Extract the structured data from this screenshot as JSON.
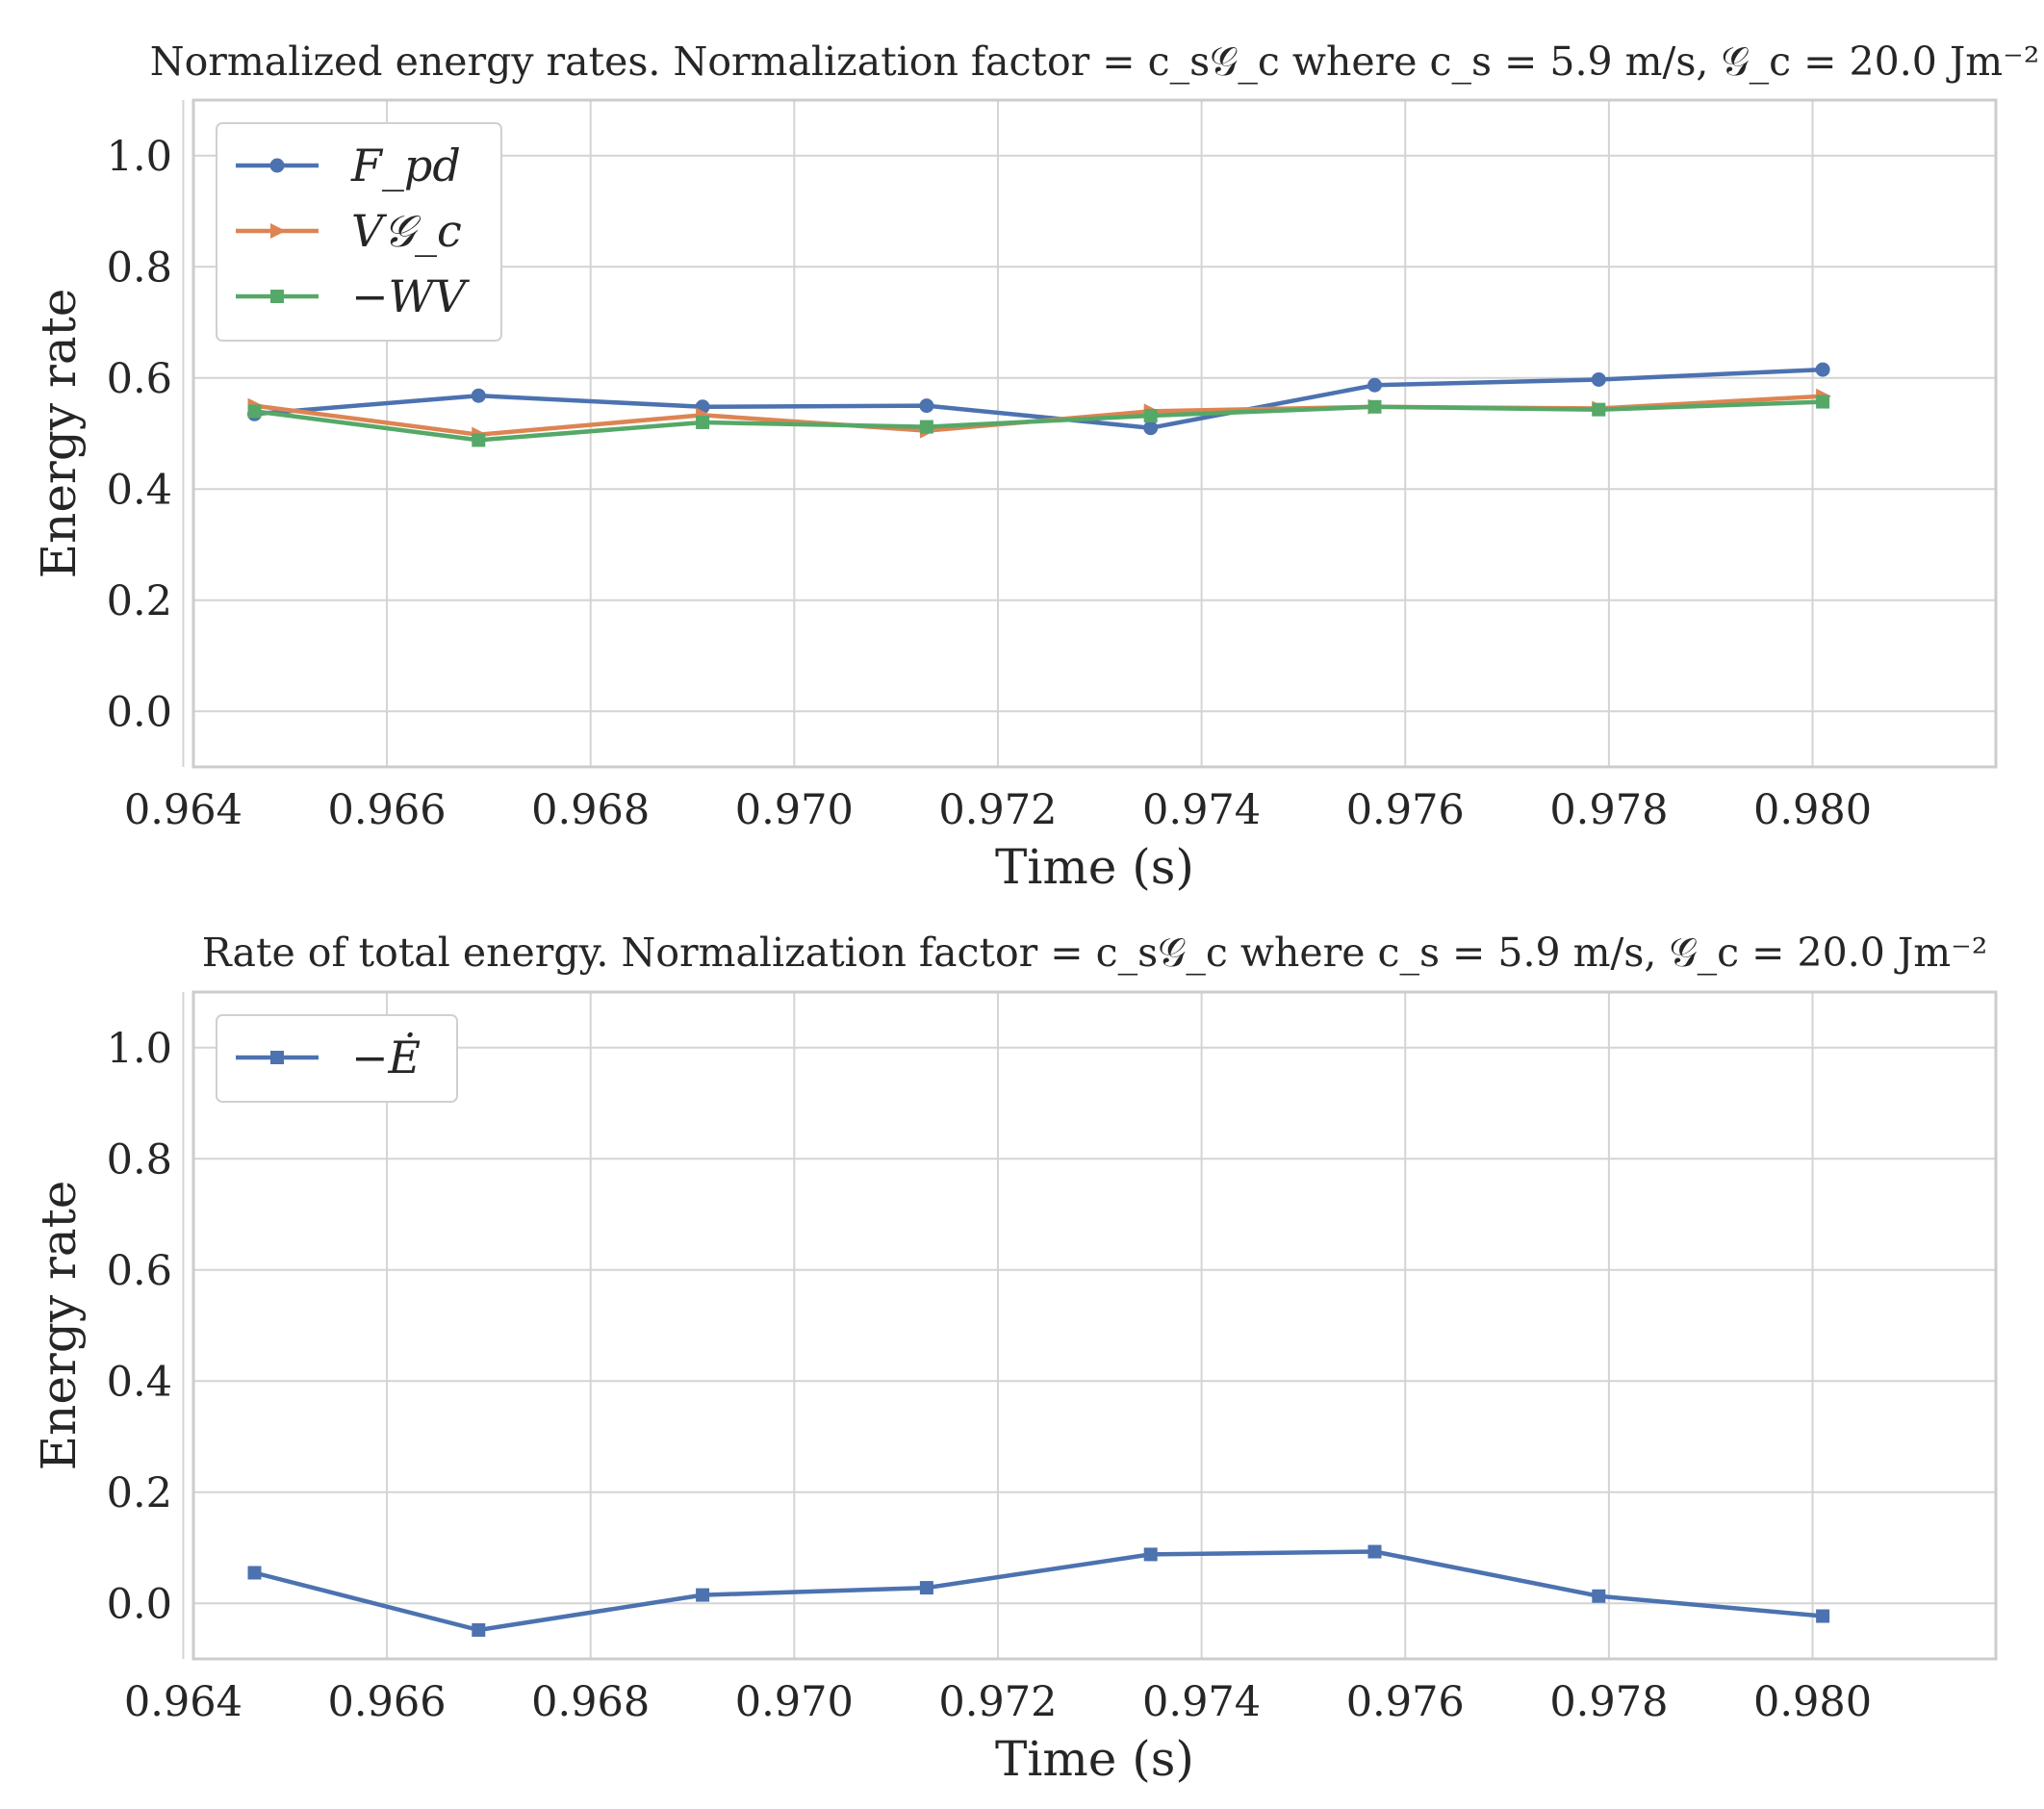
{
  "chart_data": [
    {
      "type": "line",
      "title": "Normalized energy rates. Normalization factor = c_s𝒢_c where c_s = 5.9 m/s, 𝒢_c = 20.0 Jm⁻²",
      "xlabel": "Time (s)",
      "ylabel": "Energy rate",
      "xlim": [
        0.9641,
        0.9818
      ],
      "ylim": [
        -0.1,
        1.1
      ],
      "xticks": [
        "0.964",
        "0.966",
        "0.968",
        "0.970",
        "0.972",
        "0.974",
        "0.976",
        "0.978",
        "0.980"
      ],
      "yticks": [
        "0.0",
        "0.2",
        "0.4",
        "0.6",
        "0.8",
        "1.0"
      ],
      "grid": true,
      "legend_position": "upper-left",
      "x": [
        0.9647,
        0.9669,
        0.9691,
        0.9713,
        0.9735,
        0.9757,
        0.9779,
        0.9801
      ],
      "series": [
        {
          "name": "F_pd",
          "color": "#4c72b0",
          "marker": "circle",
          "values": [
            0.535,
            0.568,
            0.548,
            0.55,
            0.51,
            0.587,
            0.597,
            0.615
          ]
        },
        {
          "name": "V𝒢_c",
          "color": "#dd8452",
          "marker": "triangle-right",
          "values": [
            0.55,
            0.498,
            0.533,
            0.505,
            0.54,
            0.548,
            0.545,
            0.567
          ]
        },
        {
          "name": "−WV",
          "color": "#55a868",
          "marker": "square",
          "values": [
            0.54,
            0.488,
            0.52,
            0.512,
            0.532,
            0.548,
            0.543,
            0.557
          ]
        }
      ]
    },
    {
      "type": "line",
      "title": "Rate of total energy. Normalization factor = c_s𝒢_c where c_s = 5.9 m/s, 𝒢_c = 20.0 Jm⁻²",
      "xlabel": "Time (s)",
      "ylabel": "Energy rate",
      "xlim": [
        0.9641,
        0.9818
      ],
      "ylim": [
        -0.1,
        1.1
      ],
      "xticks": [
        "0.964",
        "0.966",
        "0.968",
        "0.970",
        "0.972",
        "0.974",
        "0.976",
        "0.978",
        "0.980"
      ],
      "yticks": [
        "0.0",
        "0.2",
        "0.4",
        "0.6",
        "0.8",
        "1.0"
      ],
      "grid": true,
      "legend_position": "upper-left",
      "x": [
        0.9647,
        0.9669,
        0.9691,
        0.9713,
        0.9735,
        0.9757,
        0.9779,
        0.9801
      ],
      "series": [
        {
          "name": "−Ė",
          "color": "#4c72b0",
          "marker": "square",
          "values": [
            0.055,
            -0.048,
            0.015,
            0.028,
            0.088,
            0.093,
            0.013,
            -0.023
          ]
        }
      ]
    }
  ]
}
